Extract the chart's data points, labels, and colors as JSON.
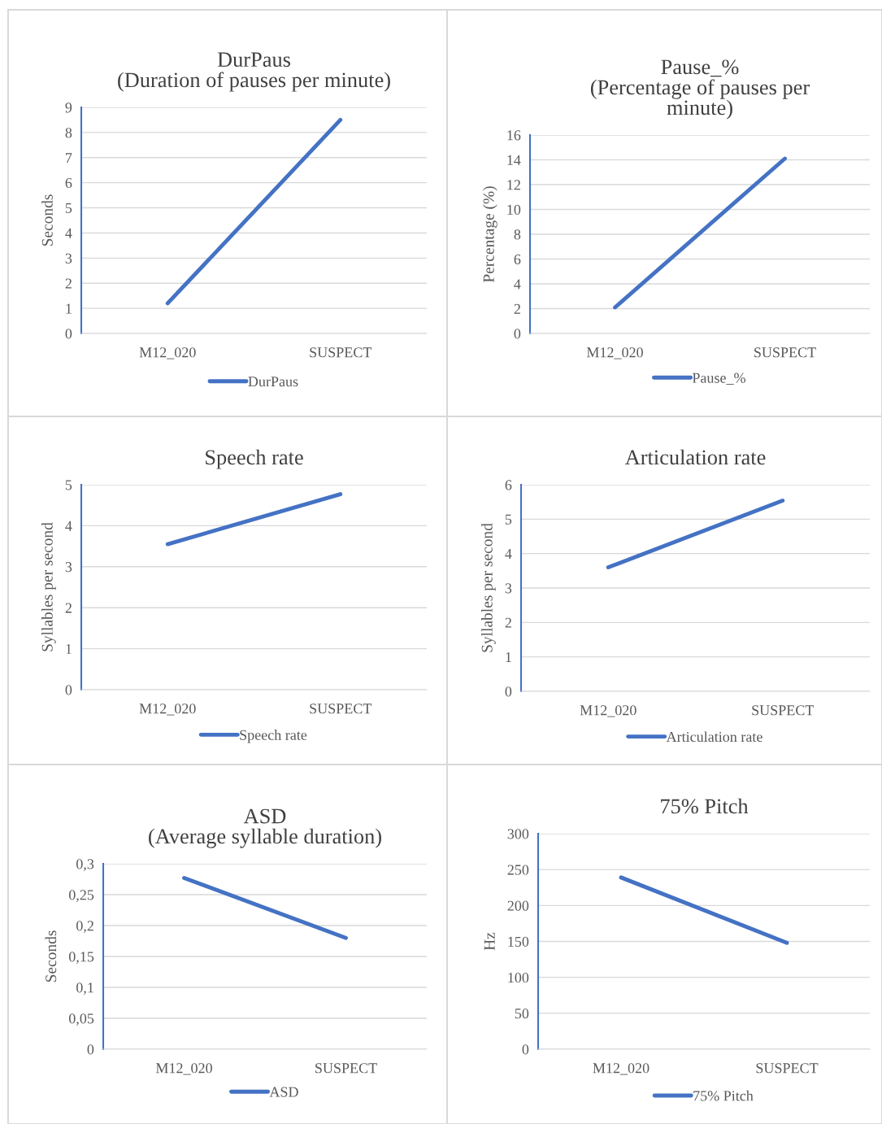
{
  "chart_data": [
    {
      "type": "line",
      "title": "DurPaus\n(Duration of pauses per minute)",
      "ylabel": "Seconds",
      "categories": [
        "M12_020",
        "SUSPECT"
      ],
      "series": [
        {
          "name": "DurPaus",
          "color": "#4472c4",
          "values": [
            1.2,
            8.5
          ]
        }
      ],
      "ylim": [
        0,
        9
      ],
      "yticks": [
        0,
        1,
        2,
        3,
        4,
        5,
        6,
        7,
        8,
        9
      ],
      "grid": "y",
      "legend": "bottom"
    },
    {
      "type": "line",
      "title": "Pause_%\n(Percentage of pauses per\nminute)",
      "ylabel": "Percentage (%)",
      "categories": [
        "M12_020",
        "SUSPECT"
      ],
      "series": [
        {
          "name": "Pause_%",
          "color": "#4472c4",
          "values": [
            2.1,
            14.1
          ]
        }
      ],
      "ylim": [
        0,
        16
      ],
      "yticks": [
        0,
        2,
        4,
        6,
        8,
        10,
        12,
        14,
        16
      ],
      "grid": "y",
      "legend": "bottom"
    },
    {
      "type": "line",
      "title": "Speech rate",
      "ylabel": "Syllables per second",
      "categories": [
        "M12_020",
        "SUSPECT"
      ],
      "series": [
        {
          "name": "Speech rate",
          "color": "#4472c4",
          "values": [
            3.55,
            4.77
          ]
        }
      ],
      "ylim": [
        0,
        5
      ],
      "yticks": [
        0,
        1,
        2,
        3,
        4,
        5
      ],
      "grid": "y",
      "legend": "bottom"
    },
    {
      "type": "line",
      "title": "Articulation rate",
      "ylabel": "Syllables per second",
      "categories": [
        "M12_020",
        "SUSPECT"
      ],
      "series": [
        {
          "name": "Articulation rate",
          "color": "#4472c4",
          "values": [
            3.6,
            5.54
          ]
        }
      ],
      "ylim": [
        0,
        6
      ],
      "yticks": [
        0,
        1,
        2,
        3,
        4,
        5,
        6
      ],
      "grid": "y",
      "legend": "bottom"
    },
    {
      "type": "line",
      "title": "ASD\n(Average syllable duration)",
      "ylabel": "Seconds",
      "categories": [
        "M12_020",
        "SUSPECT"
      ],
      "series": [
        {
          "name": "ASD",
          "color": "#4472c4",
          "values": [
            0.277,
            0.18
          ]
        }
      ],
      "ylim": [
        0,
        0.3
      ],
      "yticks": [
        0,
        {
          "value": 0.05,
          "label": "0,05"
        },
        {
          "value": 0.1,
          "label": "0,1"
        },
        {
          "value": 0.15,
          "label": "0,15"
        },
        {
          "value": 0.2,
          "label": "0,2"
        },
        {
          "value": 0.25,
          "label": "0,25"
        },
        {
          "value": 0.3,
          "label": "0,3"
        }
      ],
      "grid": "y",
      "legend": "bottom"
    },
    {
      "type": "line",
      "title": "75% Pitch",
      "ylabel": "Hz",
      "categories": [
        "M12_020",
        "SUSPECT"
      ],
      "series": [
        {
          "name": "75% Pitch",
          "color": "#4472c4",
          "values": [
            239,
            148
          ]
        }
      ],
      "ylim": [
        0,
        300
      ],
      "yticks": [
        0,
        50,
        100,
        150,
        200,
        250,
        300
      ],
      "grid": "y",
      "legend": "bottom"
    }
  ]
}
